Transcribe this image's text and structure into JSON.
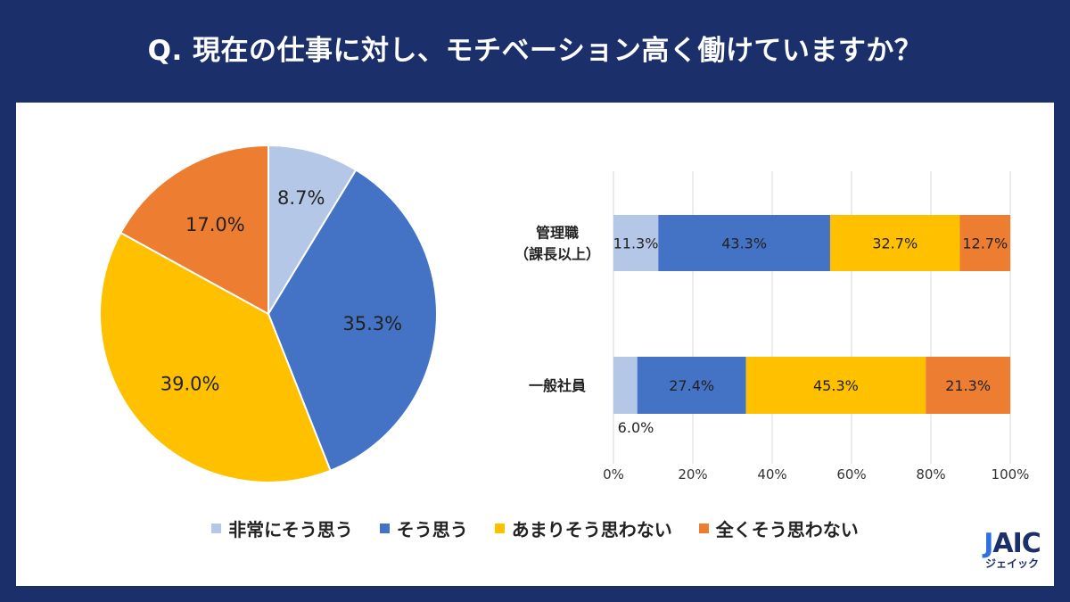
{
  "title": "Q. 現在の仕事に対し、モチベーション高く働けていますか？",
  "legend": [
    "非常にそう思う",
    "そう思う",
    "あまりそう思わない",
    "全くそう思わない"
  ],
  "colors": [
    "#b4c7e7",
    "#4472c4",
    "#ffc000",
    "#ed7d31"
  ],
  "logo": {
    "mark": "JAIC",
    "kana": "ジェイック"
  },
  "chart_data": [
    {
      "type": "pie",
      "categories": [
        "非常にそう思う",
        "そう思う",
        "あまりそう思わない",
        "全くそう思わない"
      ],
      "values": [
        8.7,
        35.3,
        39.0,
        17.0
      ],
      "labels": [
        "8.7%",
        "35.3%",
        "39.0%",
        "17.0%"
      ]
    },
    {
      "type": "bar",
      "orientation": "horizontal-stacked",
      "categories": [
        "管理職\n（課長以上）",
        "一般社員"
      ],
      "category_lines": [
        [
          "管理職",
          "（課長以上）"
        ],
        [
          "一般社員"
        ]
      ],
      "series": [
        {
          "name": "非常にそう思う",
          "values": [
            11.3,
            6.0
          ],
          "labels": [
            "11.3%",
            "6.0%"
          ]
        },
        {
          "name": "そう思う",
          "values": [
            43.3,
            27.4
          ],
          "labels": [
            "43.3%",
            "27.4%"
          ]
        },
        {
          "name": "あまりそう思わない",
          "values": [
            32.7,
            45.3
          ],
          "labels": [
            "32.7%",
            "45.3%"
          ]
        },
        {
          "name": "全くそう思わない",
          "values": [
            12.7,
            21.3
          ],
          "labels": [
            "12.7%",
            "21.3%"
          ]
        }
      ],
      "xlim": [
        0,
        100
      ],
      "xticks": [
        "0%",
        "20%",
        "40%",
        "60%",
        "80%",
        "100%"
      ],
      "grid": true
    }
  ]
}
